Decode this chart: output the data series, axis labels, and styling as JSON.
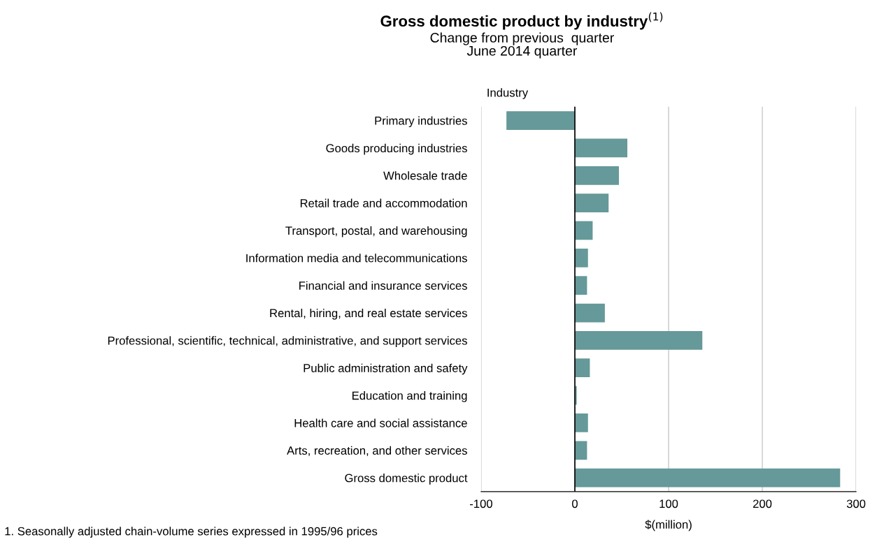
{
  "chart_data": {
    "type": "bar",
    "orientation": "horizontal",
    "title": "Gross domestic product by industry$^{(1)}$",
    "subtitle": "Change from previous  quarter\nJune 2014 quarter",
    "ylabel": "Industry",
    "xlabel": "$(million)",
    "categories": [
      "Primary industries",
      "Goods producing industries",
      "Wholesale trade",
      "Retail trade and accommodation",
      "Transport, postal, and warehousing",
      "Information media and telecommunications",
      "Financial and insurance services",
      "Rental, hiring, and real estate services",
      "Professional, scientific, technical, administrative, and support services",
      "Public administration and safety",
      "Education and training",
      "Health care and social assistance",
      "Arts, recreation, and other services",
      "Gross domestic product"
    ],
    "values": [
      -73,
      56,
      47,
      36,
      19,
      14,
      13,
      32,
      136,
      16,
      2,
      14,
      13,
      283
    ],
    "color": "#669999",
    "xlim": [
      -100,
      300
    ],
    "xticks": [
      -100,
      0,
      100,
      200,
      300
    ],
    "grid": "x",
    "ref_lines": [
      {
        "axis": "x",
        "value": 0,
        "color": "#000000"
      }
    ],
    "annotations": [
      "1. Seasonally adjusted chain-volume series expressed in 1995/96 prices"
    ]
  }
}
